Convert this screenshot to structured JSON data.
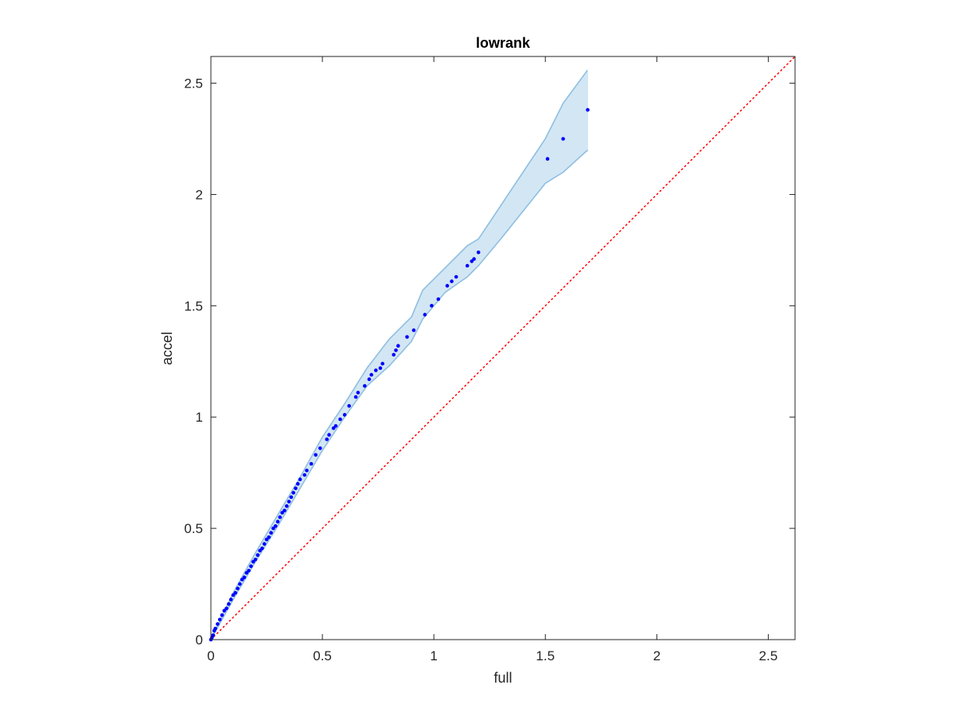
{
  "chart_data": {
    "type": "scatter",
    "title": "lowrank",
    "xlabel": "full",
    "ylabel": "accel",
    "xlim": [
      0,
      2.62
    ],
    "ylim": [
      0,
      2.62
    ],
    "xticks": [
      0,
      0.5,
      1,
      1.5,
      2,
      2.5
    ],
    "yticks": [
      0,
      0.5,
      1,
      1.5,
      2,
      2.5
    ],
    "xtick_labels": [
      "0",
      "0.5",
      "1",
      "1.5",
      "2",
      "2.5"
    ],
    "ytick_labels": [
      "0",
      "0.5",
      "1",
      "1.5",
      "2",
      "2.5"
    ],
    "grid": false,
    "box": true,
    "colors": {
      "points": "#0000ff",
      "band_fill": "#d3e6f4",
      "band_edge": "#8fbfe0",
      "reference": "#ff0000",
      "axes": "#262626"
    },
    "reference_line": {
      "style": "dotted",
      "from": [
        0,
        0
      ],
      "to": [
        2.62,
        2.62
      ]
    },
    "band": {
      "upper": [
        [
          0,
          0
        ],
        [
          0.1,
          0.21
        ],
        [
          0.2,
          0.39
        ],
        [
          0.3,
          0.56
        ],
        [
          0.4,
          0.73
        ],
        [
          0.5,
          0.91
        ],
        [
          0.6,
          1.06
        ],
        [
          0.7,
          1.22
        ],
        [
          0.8,
          1.35
        ],
        [
          0.9,
          1.45
        ],
        [
          0.95,
          1.57
        ],
        [
          1.05,
          1.67
        ],
        [
          1.15,
          1.77
        ],
        [
          1.2,
          1.8
        ],
        [
          1.3,
          1.95
        ],
        [
          1.5,
          2.25
        ],
        [
          1.58,
          2.41
        ],
        [
          1.69,
          2.56
        ]
      ],
      "lower": [
        [
          0,
          0
        ],
        [
          0.1,
          0.18
        ],
        [
          0.2,
          0.35
        ],
        [
          0.3,
          0.51
        ],
        [
          0.4,
          0.68
        ],
        [
          0.5,
          0.85
        ],
        [
          0.6,
          1
        ],
        [
          0.7,
          1.14
        ],
        [
          0.8,
          1.23
        ],
        [
          0.9,
          1.34
        ],
        [
          0.95,
          1.44
        ],
        [
          1.05,
          1.56
        ],
        [
          1.15,
          1.63
        ],
        [
          1.2,
          1.68
        ],
        [
          1.3,
          1.8
        ],
        [
          1.5,
          2.05
        ],
        [
          1.58,
          2.1
        ],
        [
          1.69,
          2.2
        ]
      ]
    },
    "points": {
      "x": [
        0,
        0.005,
        0.01,
        0.015,
        0.02,
        0.03,
        0.04,
        0.05,
        0.06,
        0.07,
        0.08,
        0.09,
        0.1,
        0.11,
        0.12,
        0.13,
        0.14,
        0.15,
        0.16,
        0.17,
        0.18,
        0.19,
        0.2,
        0.21,
        0.22,
        0.23,
        0.24,
        0.25,
        0.26,
        0.27,
        0.28,
        0.29,
        0.3,
        0.31,
        0.32,
        0.33,
        0.34,
        0.35,
        0.36,
        0.37,
        0.38,
        0.39,
        0.4,
        0.42,
        0.43,
        0.45,
        0.47,
        0.49,
        0.52,
        0.53,
        0.55,
        0.56,
        0.58,
        0.6,
        0.62,
        0.65,
        0.66,
        0.69,
        0.71,
        0.72,
        0.74,
        0.76,
        0.77,
        0.82,
        0.83,
        0.84,
        0.88,
        0.91,
        0.96,
        0.99,
        1.02,
        1.06,
        1.08,
        1.1,
        1.15,
        1.17,
        1.18,
        1.2,
        1.51,
        1.58,
        1.69
      ],
      "y": [
        0,
        0.01,
        0.02,
        0.04,
        0.05,
        0.07,
        0.09,
        0.11,
        0.13,
        0.14,
        0.16,
        0.18,
        0.2,
        0.21,
        0.23,
        0.25,
        0.27,
        0.28,
        0.3,
        0.31,
        0.33,
        0.35,
        0.36,
        0.38,
        0.4,
        0.41,
        0.43,
        0.45,
        0.46,
        0.48,
        0.5,
        0.51,
        0.53,
        0.55,
        0.57,
        0.58,
        0.6,
        0.62,
        0.64,
        0.66,
        0.68,
        0.7,
        0.72,
        0.74,
        0.76,
        0.79,
        0.83,
        0.86,
        0.9,
        0.92,
        0.95,
        0.96,
        0.99,
        1.01,
        1.05,
        1.09,
        1.11,
        1.14,
        1.17,
        1.19,
        1.21,
        1.22,
        1.24,
        1.28,
        1.3,
        1.32,
        1.36,
        1.39,
        1.46,
        1.5,
        1.53,
        1.59,
        1.61,
        1.63,
        1.68,
        1.7,
        1.71,
        1.74,
        2.16,
        2.25,
        2.38
      ]
    }
  }
}
